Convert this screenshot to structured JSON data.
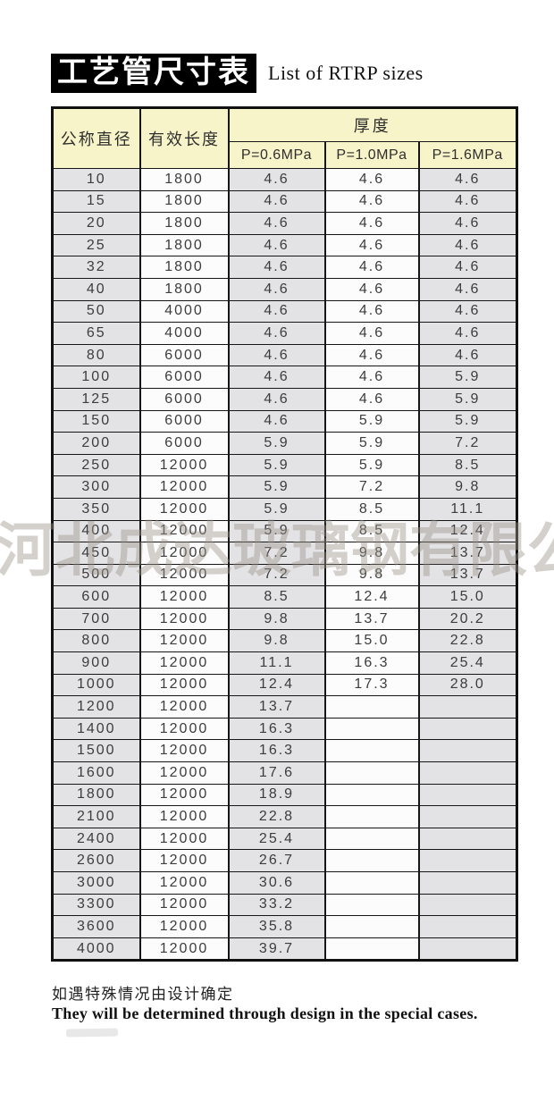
{
  "page": {
    "title_zh": "工艺管尺寸表",
    "title_en": "List of RTRP sizes",
    "watermark": "河北成达玻璃钢有限公司",
    "footnote_zh": "如遇特殊情况由设计确定",
    "footnote_en": "They will be determined through design in the special cases."
  },
  "colors": {
    "title_bg": "#000000",
    "header_bg": "#f8f4c9",
    "cell_gray": "#e3e3e6",
    "cell_white": "#fcfcfc",
    "border": "#161616",
    "watermark": "#9b9289"
  },
  "table": {
    "headers": {
      "col_diameter": "公称直径",
      "col_length": "有效长度",
      "col_thickness": "厚度",
      "sub_p06": "P=0.6MPa",
      "sub_p10": "P=1.0MPa",
      "sub_p16": "P=1.6MPa"
    },
    "rows": [
      [
        "10",
        "1800",
        "4.6",
        "4.6",
        "4.6"
      ],
      [
        "15",
        "1800",
        "4.6",
        "4.6",
        "4.6"
      ],
      [
        "20",
        "1800",
        "4.6",
        "4.6",
        "4.6"
      ],
      [
        "25",
        "1800",
        "4.6",
        "4.6",
        "4.6"
      ],
      [
        "32",
        "1800",
        "4.6",
        "4.6",
        "4.6"
      ],
      [
        "40",
        "1800",
        "4.6",
        "4.6",
        "4.6"
      ],
      [
        "50",
        "4000",
        "4.6",
        "4.6",
        "4.6"
      ],
      [
        "65",
        "4000",
        "4.6",
        "4.6",
        "4.6"
      ],
      [
        "80",
        "6000",
        "4.6",
        "4.6",
        "4.6"
      ],
      [
        "100",
        "6000",
        "4.6",
        "4.6",
        "5.9"
      ],
      [
        "125",
        "6000",
        "4.6",
        "4.6",
        "5.9"
      ],
      [
        "150",
        "6000",
        "4.6",
        "5.9",
        "5.9"
      ],
      [
        "200",
        "6000",
        "5.9",
        "5.9",
        "7.2"
      ],
      [
        "250",
        "12000",
        "5.9",
        "5.9",
        "8.5"
      ],
      [
        "300",
        "12000",
        "5.9",
        "7.2",
        "9.8"
      ],
      [
        "350",
        "12000",
        "5.9",
        "8.5",
        "11.1"
      ],
      [
        "400",
        "12000",
        "5.9",
        "8.5",
        "12.4"
      ],
      [
        "450",
        "12000",
        "7.2",
        "9.8",
        "13.7"
      ],
      [
        "500",
        "12000",
        "7.2",
        "9.8",
        "13.7"
      ],
      [
        "600",
        "12000",
        "8.5",
        "12.4",
        "15.0"
      ],
      [
        "700",
        "12000",
        "9.8",
        "13.7",
        "20.2"
      ],
      [
        "800",
        "12000",
        "9.8",
        "15.0",
        "22.8"
      ],
      [
        "900",
        "12000",
        "11.1",
        "16.3",
        "25.4"
      ],
      [
        "1000",
        "12000",
        "12.4",
        "17.3",
        "28.0"
      ],
      [
        "1200",
        "12000",
        "13.7",
        "",
        ""
      ],
      [
        "1400",
        "12000",
        "16.3",
        "",
        ""
      ],
      [
        "1500",
        "12000",
        "16.3",
        "",
        ""
      ],
      [
        "1600",
        "12000",
        "17.6",
        "",
        ""
      ],
      [
        "1800",
        "12000",
        "18.9",
        "",
        ""
      ],
      [
        "2100",
        "12000",
        "22.8",
        "",
        ""
      ],
      [
        "2400",
        "12000",
        "25.4",
        "",
        ""
      ],
      [
        "2600",
        "12000",
        "26.7",
        "",
        ""
      ],
      [
        "3000",
        "12000",
        "30.6",
        "",
        ""
      ],
      [
        "3300",
        "12000",
        "33.2",
        "",
        ""
      ],
      [
        "3600",
        "12000",
        "35.8",
        "",
        ""
      ],
      [
        "4000",
        "12000",
        "39.7",
        "",
        ""
      ]
    ]
  }
}
